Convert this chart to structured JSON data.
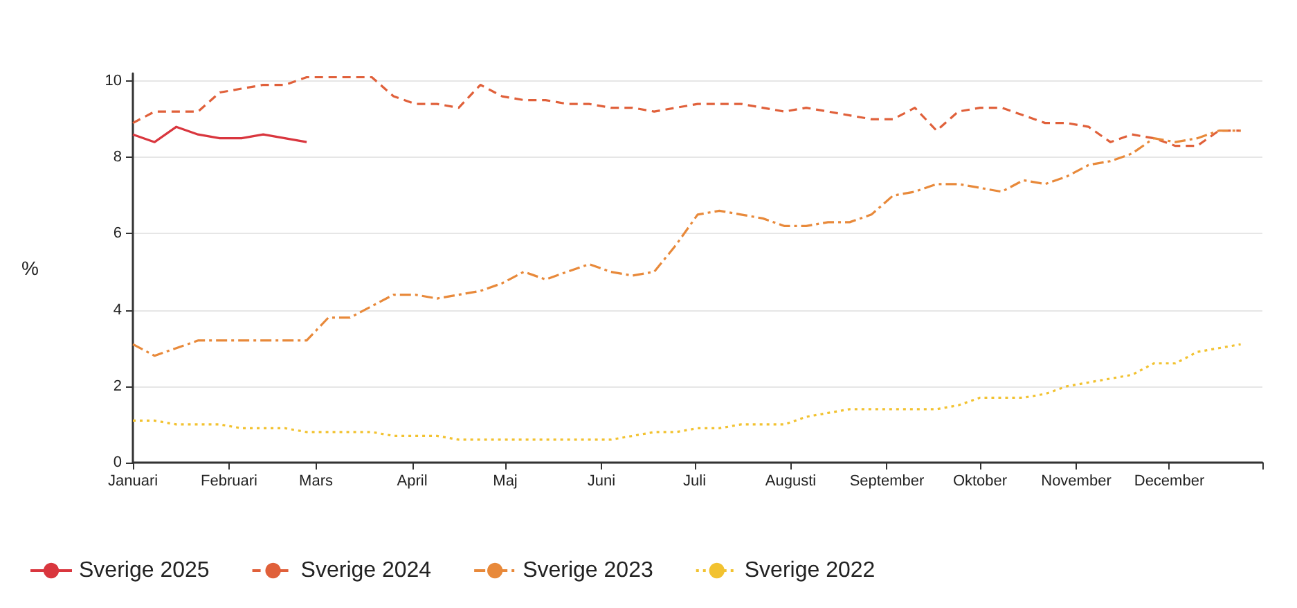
{
  "chart_data": {
    "type": "line",
    "ylabel": "%",
    "x": [
      "--01-01",
      "--01-08",
      "--01-15",
      "--01-22",
      "--01-29",
      "--02-05",
      "--02-12",
      "--02-19",
      "--02-26",
      "--03-05",
      "--03-12",
      "--03-19",
      "--03-26",
      "--04-02",
      "--04-09",
      "--04-16",
      "--04-23",
      "--04-30",
      "--05-07",
      "--05-14",
      "--05-21",
      "--05-28",
      "--06-04",
      "--06-11",
      "--06-18",
      "--06-25",
      "--07-02",
      "--07-09",
      "--07-16",
      "--07-23",
      "--07-30",
      "--08-06",
      "--08-13",
      "--08-20",
      "--08-27",
      "--09-03",
      "--09-10",
      "--09-17",
      "--09-24",
      "--10-01",
      "--10-08",
      "--10-15",
      "--10-22",
      "--10-29",
      "--11-05",
      "--11-12",
      "--11-19",
      "--11-26",
      "--12-03",
      "--12-10",
      "--12-17",
      "--12-24"
    ],
    "series": [
      {
        "name": "Sverige 2025",
        "color": "#d9363e",
        "line_style": "solid",
        "x": [
          "--01-01",
          "--01-08",
          "--01-15",
          "--01-22",
          "--01-29",
          "--02-05",
          "--02-12",
          "--02-19",
          "--02-26"
        ],
        "values": [
          8.6,
          8.4,
          8.8,
          8.6,
          8.5,
          8.5,
          8.6,
          8.5,
          8.4
        ]
      },
      {
        "name": "Sverige 2024",
        "color": "#e0603a",
        "line_style": "dashed",
        "values": [
          8.9,
          9.2,
          9.2,
          9.2,
          9.7,
          9.8,
          9.9,
          9.9,
          10.1,
          10.1,
          10.1,
          10.1,
          9.6,
          9.4,
          9.4,
          9.3,
          9.9,
          9.6,
          9.5,
          9.5,
          9.4,
          9.4,
          9.3,
          9.3,
          9.2,
          9.3,
          9.4,
          9.4,
          9.4,
          9.3,
          9.2,
          9.3,
          9.2,
          9.1,
          9.0,
          9.0,
          9.3,
          8.7,
          9.2,
          9.3,
          9.3,
          9.1,
          8.9,
          8.9,
          8.8,
          8.4,
          8.6,
          8.5,
          8.3,
          8.3,
          8.7,
          8.7
        ]
      },
      {
        "name": "Sverige 2023",
        "color": "#e8893a",
        "line_style": "dashdot",
        "values": [
          3.1,
          2.8,
          3.0,
          3.2,
          3.2,
          3.2,
          3.2,
          3.2,
          3.2,
          3.8,
          3.8,
          4.1,
          4.4,
          4.4,
          4.3,
          4.4,
          4.5,
          4.7,
          5.0,
          4.8,
          5.0,
          5.2,
          5.0,
          4.9,
          5.0,
          5.7,
          6.5,
          6.6,
          6.5,
          6.4,
          6.2,
          6.2,
          6.3,
          6.3,
          6.5,
          7.0,
          7.1,
          7.3,
          7.3,
          7.2,
          7.1,
          7.4,
          7.3,
          7.5,
          7.8,
          7.9,
          8.1,
          8.5,
          8.4,
          8.5,
          8.7,
          8.7
        ]
      },
      {
        "name": "Sverige 2022",
        "color": "#f2c230",
        "line_style": "dotted",
        "values": [
          1.1,
          1.1,
          1.0,
          1.0,
          1.0,
          0.9,
          0.9,
          0.9,
          0.8,
          0.8,
          0.8,
          0.8,
          0.7,
          0.7,
          0.7,
          0.6,
          0.6,
          0.6,
          0.6,
          0.6,
          0.6,
          0.6,
          0.6,
          0.7,
          0.8,
          0.8,
          0.9,
          0.9,
          1.0,
          1.0,
          1.0,
          1.2,
          1.3,
          1.4,
          1.4,
          1.4,
          1.4,
          1.4,
          1.5,
          1.7,
          1.7,
          1.7,
          1.8,
          2.0,
          2.1,
          2.2,
          2.3,
          2.6,
          2.6,
          2.9,
          3.0,
          3.1
        ]
      }
    ],
    "xlim": [
      "--01-01",
      "--12-31"
    ],
    "xticks": [
      {
        "value": "--01-01",
        "label": "Januari"
      },
      {
        "value": "--02-01",
        "label": "Februari"
      },
      {
        "value": "--03-01",
        "label": "Mars"
      },
      {
        "value": "--04-01",
        "label": "April"
      },
      {
        "value": "--05-01",
        "label": "Maj"
      },
      {
        "value": "--06-01",
        "label": "Juni"
      },
      {
        "value": "--07-01",
        "label": "Juli"
      },
      {
        "value": "--08-01",
        "label": "Augusti"
      },
      {
        "value": "--09-01",
        "label": "September"
      },
      {
        "value": "--10-01",
        "label": "Oktober"
      },
      {
        "value": "--11-01",
        "label": "November"
      },
      {
        "value": "--12-01",
        "label": "December"
      },
      {
        "value": "--12-31",
        "label": null
      }
    ],
    "ylim": [
      0,
      10.2
    ],
    "yticks": [
      0,
      2,
      4,
      6,
      8,
      10
    ],
    "grid": "y",
    "legend": "bottom left",
    "marker": "none"
  }
}
